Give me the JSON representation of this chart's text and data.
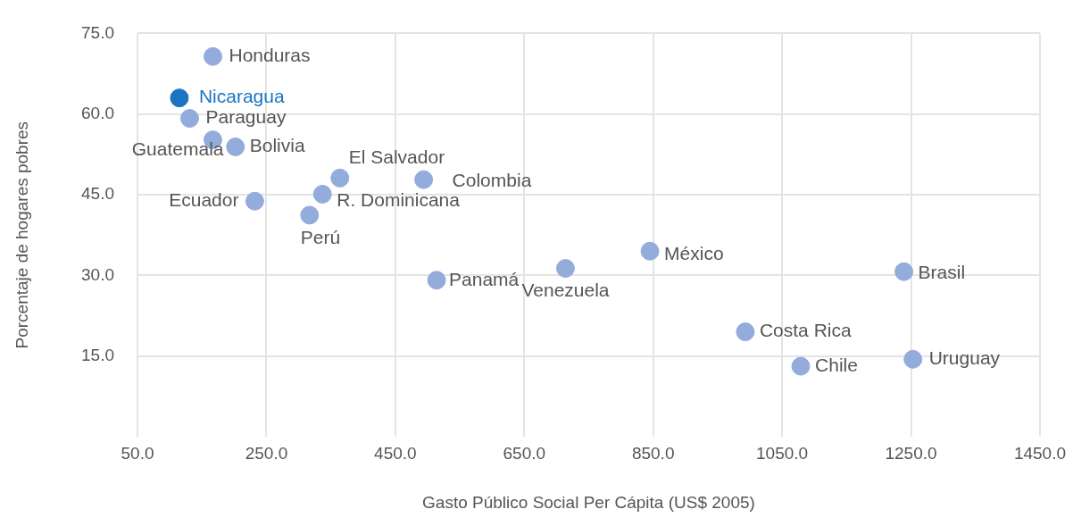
{
  "chart_data": {
    "type": "scatter",
    "xlabel": "Gasto Público Social Per Cápita (US$ 2005)",
    "ylabel": "Porcentaje de hogares pobres",
    "xlim": [
      50,
      1450
    ],
    "ylim": [
      0,
      75
    ],
    "xticks": [
      {
        "value": 50,
        "label": "50.0"
      },
      {
        "value": 250,
        "label": "250.0"
      },
      {
        "value": 450,
        "label": "450.0"
      },
      {
        "value": 650,
        "label": "650.0"
      },
      {
        "value": 850,
        "label": "850.0"
      },
      {
        "value": 1050,
        "label": "1050.0"
      },
      {
        "value": 1250,
        "label": "1250.0"
      },
      {
        "value": 1450,
        "label": "1450.0"
      }
    ],
    "yticks": [
      {
        "value": 15,
        "label": "15.0"
      },
      {
        "value": 30,
        "label": "30.0"
      },
      {
        "value": 45,
        "label": "45.0"
      },
      {
        "value": 60,
        "label": "60.0"
      },
      {
        "value": 75,
        "label": "75.0"
      }
    ],
    "grid": true,
    "legend": false,
    "marker": "circle",
    "series": [
      {
        "color": "#93acdc",
        "x": [
          167,
          131,
          167,
          202,
          364,
          494,
          337,
          232,
          317,
          514,
          714,
          845,
          1239,
          993,
          1079,
          1253
        ],
        "values": [
          70.7,
          59.2,
          55.2,
          53.9,
          48.1,
          47.8,
          45.1,
          43.8,
          41.2,
          29.1,
          31.3,
          34.5,
          30.7,
          19.5,
          13.1,
          14.4
        ]
      },
      {
        "color": "#1a74c2",
        "x": [
          115
        ],
        "values": [
          63.0
        ]
      }
    ],
    "annotations": [
      {
        "text": "Honduras",
        "x": 167,
        "y": 70.7
      },
      {
        "text": "Paraguay",
        "x": 131,
        "y": 59.2
      },
      {
        "text": "Guatemala",
        "x": 167,
        "y": 55.2
      },
      {
        "text": "Bolivia",
        "x": 202,
        "y": 53.9
      },
      {
        "text": "El Salvador",
        "x": 364,
        "y": 48.1
      },
      {
        "text": "Colombia",
        "x": 494,
        "y": 47.8
      },
      {
        "text": "R. Dominicana",
        "x": 337,
        "y": 45.1
      },
      {
        "text": "Ecuador",
        "x": 232,
        "y": 43.8
      },
      {
        "text": "Perú",
        "x": 317,
        "y": 41.2
      },
      {
        "text": "Panamá",
        "x": 514,
        "y": 29.1
      },
      {
        "text": "Venezuela",
        "x": 714,
        "y": 31.3
      },
      {
        "text": "México",
        "x": 845,
        "y": 34.5
      },
      {
        "text": "Brasil",
        "x": 1239,
        "y": 30.7
      },
      {
        "text": "Costa Rica",
        "x": 993,
        "y": 19.5
      },
      {
        "text": "Chile",
        "x": 1079,
        "y": 13.1
      },
      {
        "text": "Uruguay",
        "x": 1253,
        "y": 14.4
      },
      {
        "text": "Nicaragua",
        "x": 115,
        "y": 63.0
      }
    ]
  }
}
